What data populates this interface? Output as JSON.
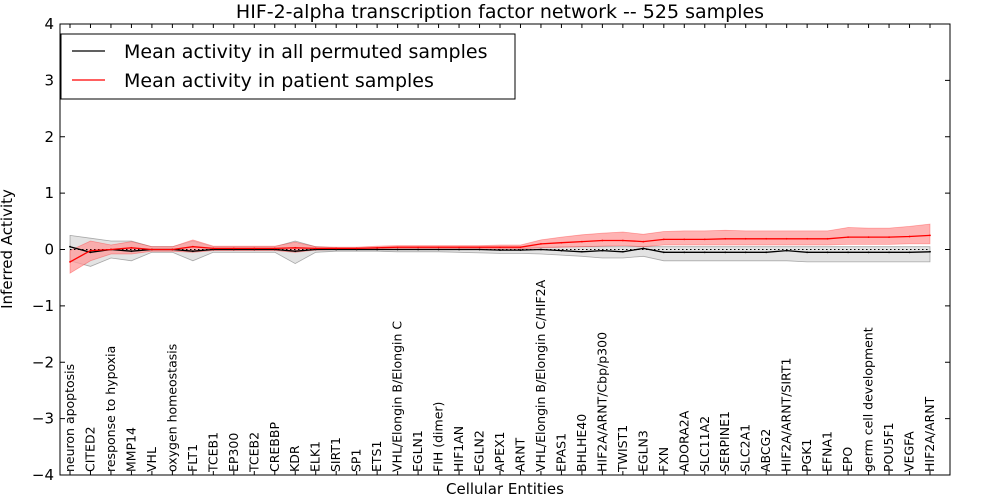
{
  "chart_data": {
    "type": "line",
    "title": "HIF-2-alpha transcription factor network -- 525 samples",
    "xlabel": "Cellular Entities",
    "ylabel": "Inferred Activity",
    "ylim": [
      -4,
      4
    ],
    "yticks": [
      -4,
      -3,
      -2,
      -1,
      0,
      1,
      2,
      3,
      4
    ],
    "ytick_labels": [
      "−4",
      "−3",
      "−2",
      "−1",
      "0",
      "1",
      "2",
      "3",
      "4"
    ],
    "legend_position": "top-left",
    "categories": [
      "neuron apoptosis",
      "CITED2",
      "response to hypoxia",
      "MMP14",
      "VHL",
      "oxygen homeostasis",
      "FLT1",
      "TCEB1",
      "EP300",
      "TCEB2",
      "CREBBP",
      "KDR",
      "ELK1",
      "SIRT1",
      "SP1",
      "ETS1",
      "VHL/Elongin B/Elongin C",
      "EGLN1",
      "FIH (dimer)",
      "HIF1AN",
      "EGLN2",
      "APEX1",
      "ARNT",
      "VHL/Elongin B/Elongin C/HIF2A",
      "EPAS1",
      "BHLHE40",
      "HIF2A/ARNT/Cbp/p300",
      "TWIST1",
      "EGLN3",
      "FXN",
      "ADORA2A",
      "SLC11A2",
      "SERPINE1",
      "SLC2A1",
      "ABCG2",
      "HIF2A/ARNT/SIRT1",
      "PGK1",
      "EFNA1",
      "EPO",
      "germ cell development",
      "POU5F1",
      "VEGFA",
      "HIF2A/ARNT"
    ],
    "series": [
      {
        "name": "Mean activity in all permuted samples",
        "color": "#000000",
        "band_color": "#c8c8c8",
        "values": [
          0.05,
          -0.05,
          0,
          -0.03,
          0,
          0,
          -0.03,
          0,
          0,
          0,
          0,
          -0.03,
          0,
          0,
          0,
          0,
          0,
          0,
          0,
          0,
          0,
          -0.01,
          -0.01,
          0,
          -0.02,
          -0.04,
          -0.02,
          -0.04,
          0.02,
          -0.05,
          -0.05,
          -0.05,
          -0.05,
          -0.05,
          -0.05,
          -0.02,
          -0.05,
          -0.05,
          -0.05,
          -0.05,
          -0.05,
          -0.05,
          -0.04
        ],
        "lower": [
          -0.2,
          -0.3,
          -0.15,
          -0.2,
          -0.05,
          -0.05,
          -0.2,
          -0.05,
          -0.05,
          -0.05,
          -0.05,
          -0.25,
          -0.05,
          -0.03,
          -0.03,
          -0.03,
          -0.04,
          -0.04,
          -0.04,
          -0.05,
          -0.06,
          -0.07,
          -0.07,
          -0.08,
          -0.1,
          -0.12,
          -0.15,
          -0.15,
          -0.12,
          -0.2,
          -0.2,
          -0.2,
          -0.2,
          -0.2,
          -0.2,
          -0.2,
          -0.22,
          -0.22,
          -0.22,
          -0.22,
          -0.22,
          -0.22,
          -0.22
        ],
        "upper": [
          0.25,
          0.2,
          0.15,
          0.15,
          0.05,
          0.05,
          0.15,
          0.05,
          0.05,
          0.05,
          0.05,
          0.15,
          0.05,
          0.03,
          0.03,
          0.03,
          0.04,
          0.04,
          0.04,
          0.04,
          0.04,
          0.04,
          0.04,
          0.04,
          0.05,
          0.05,
          0.05,
          0.05,
          0.05,
          0.05,
          0.05,
          0.05,
          0.05,
          0.05,
          0.05,
          0.05,
          0.05,
          0.05,
          0.05,
          0.05,
          0.05,
          0.05,
          0.05
        ]
      },
      {
        "name": "Mean activity in patient samples",
        "color": "#ff0000",
        "band_color": "#ff9a9a",
        "values": [
          -0.22,
          -0.02,
          0,
          0.03,
          0,
          0,
          0.05,
          0.02,
          0.02,
          0.02,
          0.02,
          0.03,
          0.02,
          0.02,
          0.02,
          0.03,
          0.04,
          0.04,
          0.04,
          0.04,
          0.04,
          0.04,
          0.04,
          0.1,
          0.12,
          0.14,
          0.16,
          0.16,
          0.14,
          0.18,
          0.18,
          0.18,
          0.19,
          0.19,
          0.19,
          0.19,
          0.19,
          0.19,
          0.22,
          0.22,
          0.22,
          0.23,
          0.25
        ],
        "lower": [
          -0.42,
          -0.2,
          -0.08,
          -0.08,
          -0.03,
          -0.03,
          -0.05,
          -0.02,
          -0.02,
          -0.02,
          -0.02,
          -0.05,
          -0.01,
          0,
          0,
          0,
          0.01,
          0.01,
          0.01,
          0.01,
          0.01,
          0.01,
          0.01,
          0.03,
          0.04,
          0.05,
          0.06,
          0.07,
          0.05,
          0.08,
          0.08,
          0.08,
          0.08,
          0.08,
          0.08,
          0.08,
          0.08,
          0.08,
          0.09,
          0.09,
          0.09,
          0.1,
          0.1
        ],
        "upper": [
          -0.02,
          0.15,
          0.08,
          0.14,
          0.05,
          0.05,
          0.17,
          0.06,
          0.06,
          0.06,
          0.06,
          0.13,
          0.05,
          0.04,
          0.04,
          0.06,
          0.07,
          0.07,
          0.07,
          0.07,
          0.07,
          0.08,
          0.08,
          0.17,
          0.22,
          0.26,
          0.29,
          0.31,
          0.27,
          0.32,
          0.33,
          0.33,
          0.34,
          0.33,
          0.33,
          0.33,
          0.33,
          0.33,
          0.39,
          0.38,
          0.38,
          0.41,
          0.45
        ]
      }
    ]
  }
}
